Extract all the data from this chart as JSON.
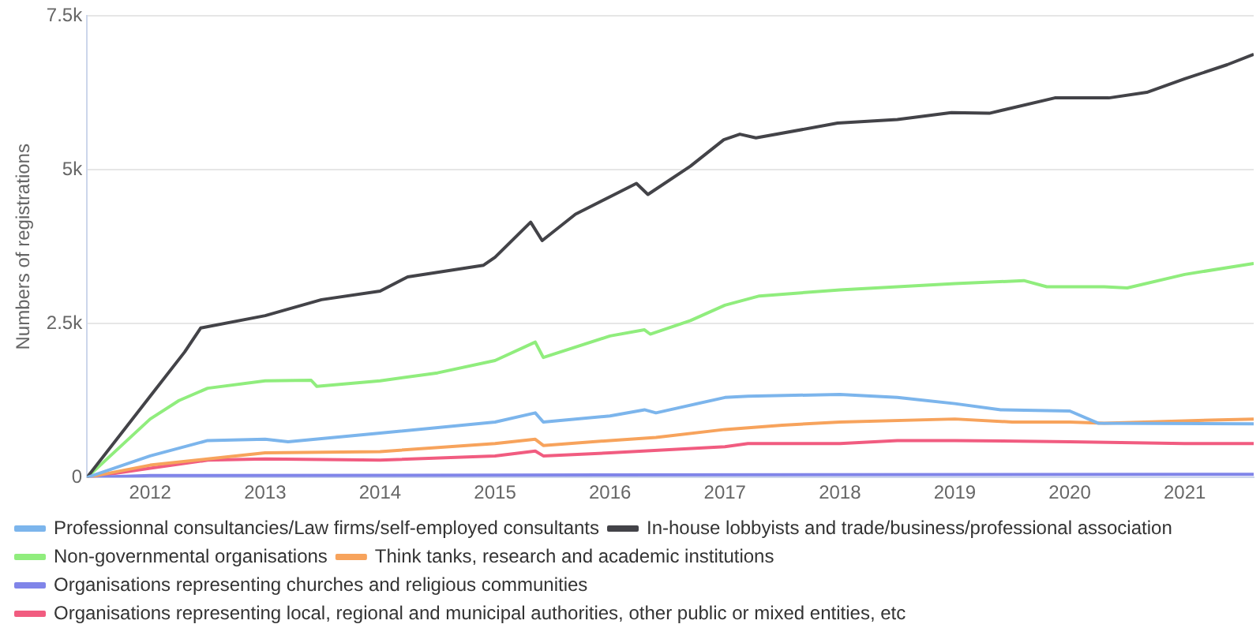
{
  "chart_data": {
    "type": "line",
    "ylabel": "Numbers of registrations",
    "xlim": [
      2011.45,
      2021.6
    ],
    "xticks": [
      2012,
      2013,
      2014,
      2015,
      2016,
      2017,
      2018,
      2019,
      2020,
      2021
    ],
    "ylim": [
      0,
      7500
    ],
    "yticks": [
      {
        "value": 0,
        "label": "0"
      },
      {
        "value": 2500,
        "label": "2.5k"
      },
      {
        "value": 5000,
        "label": "5k"
      },
      {
        "value": 7500,
        "label": "7.5k"
      }
    ],
    "grid": "y",
    "legend": "bottom",
    "series": [
      {
        "name": "Professionnal consultancies/Law firms/self-employed consultants",
        "color": "#7cb5ec",
        "x": [
          2011.45,
          2012,
          2012.5,
          2013,
          2013.2,
          2014,
          2015,
          2015.35,
          2015.42,
          2016,
          2016.3,
          2016.4,
          2017,
          2017.2,
          2018,
          2018.5,
          2019,
          2019.4,
          2020,
          2020.25,
          2021.6
        ],
        "values": [
          0,
          350,
          600,
          620,
          580,
          720,
          900,
          1050,
          900,
          1000,
          1100,
          1050,
          1300,
          1320,
          1350,
          1300,
          1200,
          1100,
          1080,
          880,
          870
        ]
      },
      {
        "name": "In-house lobbyists and trade/business/professional association",
        "color": "#434348",
        "x": [
          2011.45,
          2012,
          2012.3,
          2012.44,
          2013,
          2013.49,
          2014,
          2014.24,
          2014.9,
          2015,
          2015.31,
          2015.41,
          2015.7,
          2016.04,
          2016.23,
          2016.33,
          2016.7,
          2016.99,
          2017.13,
          2017.27,
          2017.98,
          2018.5,
          2018.97,
          2019.3,
          2019.87,
          2020.34,
          2020.67,
          2021,
          2021.37,
          2021.6
        ],
        "values": [
          0,
          1320,
          2040,
          2430,
          2630,
          2890,
          3030,
          3260,
          3450,
          3580,
          4150,
          3850,
          4280,
          4600,
          4780,
          4600,
          5060,
          5490,
          5580,
          5520,
          5760,
          5820,
          5930,
          5920,
          6170,
          6170,
          6260,
          6480,
          6710,
          6880
        ]
      },
      {
        "name": "Non-governmental organisations",
        "color": "#90ed7d",
        "x": [
          2011.45,
          2012,
          2012.25,
          2012.5,
          2013,
          2013.4,
          2013.45,
          2014,
          2014.5,
          2015,
          2015.35,
          2015.42,
          2016,
          2016.3,
          2016.35,
          2016.7,
          2017,
          2017.3,
          2018,
          2019,
          2019.6,
          2019.8,
          2020.3,
          2020.5,
          2021,
          2021.6
        ],
        "values": [
          0,
          950,
          1250,
          1450,
          1570,
          1580,
          1480,
          1570,
          1700,
          1900,
          2200,
          1950,
          2300,
          2400,
          2330,
          2550,
          2800,
          2950,
          3050,
          3150,
          3200,
          3100,
          3100,
          3080,
          3300,
          3480
        ]
      },
      {
        "name": "Think tanks, research and academic institutions",
        "color": "#f7a35c",
        "x": [
          2011.45,
          2012,
          2012.5,
          2013,
          2014,
          2015,
          2015.35,
          2015.42,
          2016,
          2016.4,
          2017,
          2017.5,
          2018,
          2019,
          2019.5,
          2020,
          2020.3,
          2021,
          2021.6
        ],
        "values": [
          0,
          200,
          300,
          400,
          420,
          550,
          620,
          520,
          600,
          650,
          780,
          850,
          900,
          950,
          900,
          900,
          880,
          920,
          950
        ]
      },
      {
        "name": "Organisations representing churches and religious communities",
        "color": "#8085e9",
        "x": [
          2011.45,
          2012,
          2016,
          2021.6
        ],
        "values": [
          0,
          30,
          40,
          50
        ]
      },
      {
        "name": "Organisations representing local, regional and municipal authorities, other public or mixed entities, etc",
        "color": "#f15c80",
        "x": [
          2011.45,
          2012,
          2012.5,
          2013,
          2014,
          2015,
          2015.35,
          2015.42,
          2016,
          2017,
          2017.2,
          2018,
          2018.5,
          2019,
          2020,
          2021,
          2021.6
        ],
        "values": [
          0,
          150,
          280,
          300,
          280,
          350,
          430,
          350,
          400,
          500,
          550,
          550,
          600,
          600,
          580,
          550,
          550
        ]
      }
    ]
  }
}
